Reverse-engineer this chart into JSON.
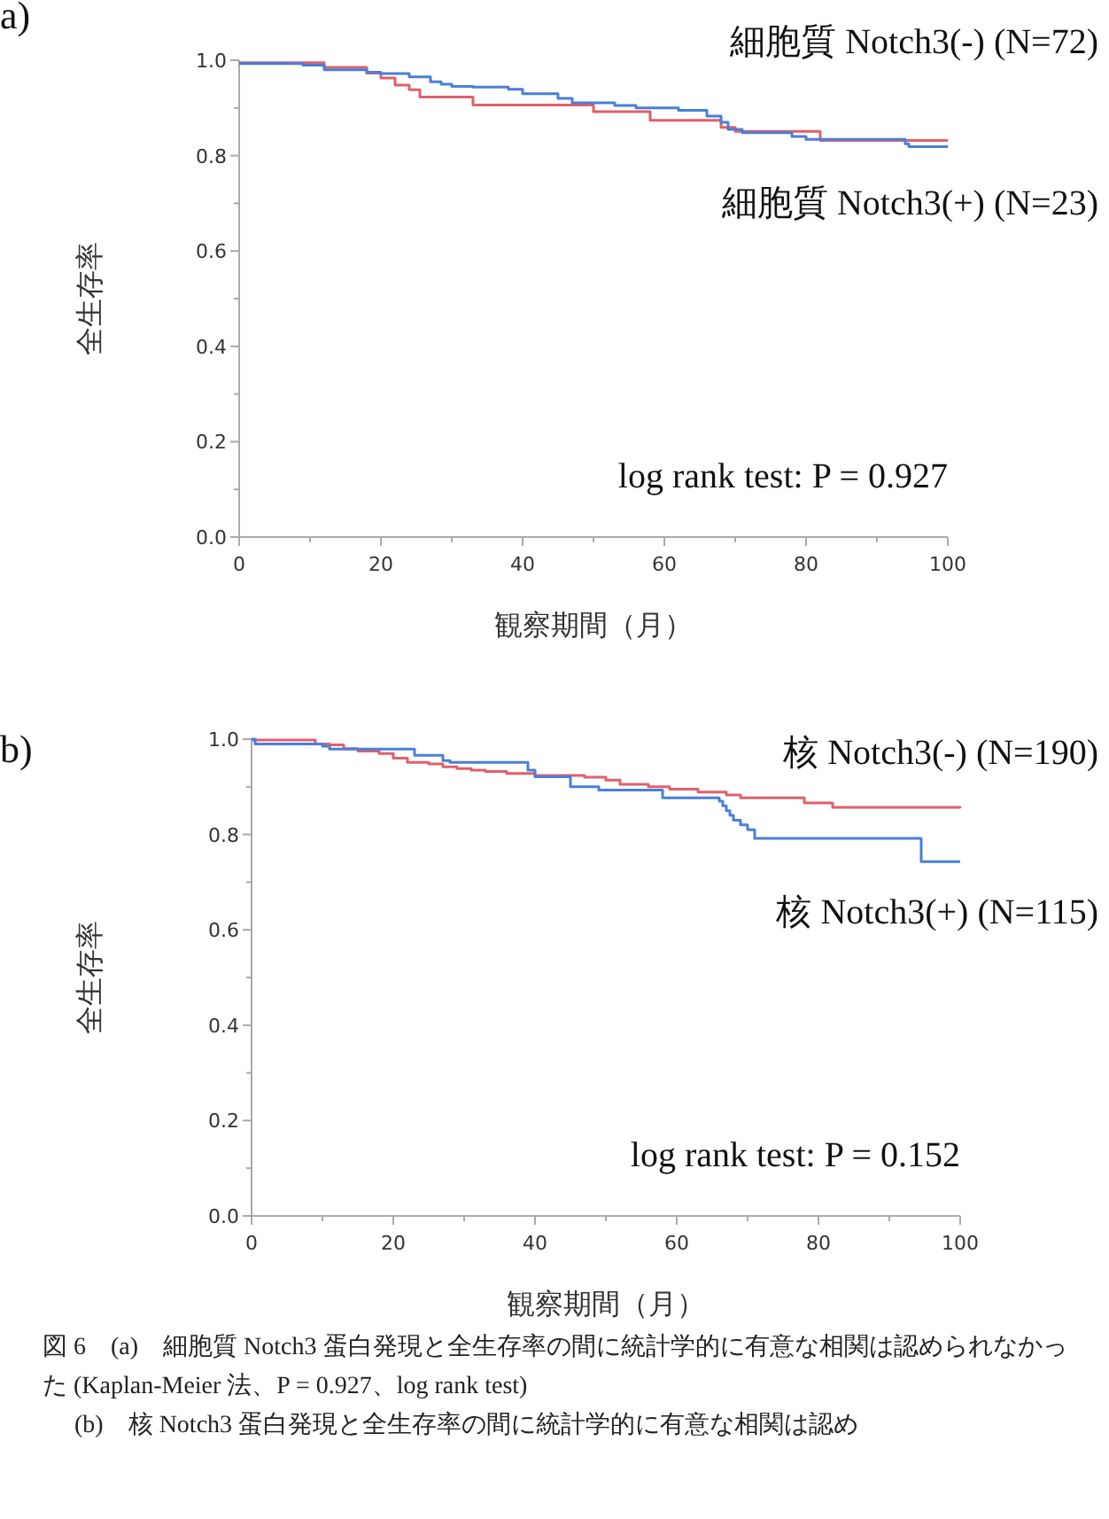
{
  "chart_data": [
    {
      "type": "step",
      "xlabel": "観察期間（月）",
      "ylabel": "全生存率",
      "xlim": [
        0,
        100
      ],
      "ylim": [
        0,
        1
      ],
      "xticks": [
        0,
        {
          "value": 10,
          "label": null
        },
        20,
        {
          "value": 30,
          "label": null
        },
        40,
        {
          "value": 50,
          "label": null
        },
        60,
        {
          "value": 70,
          "label": null
        },
        80,
        {
          "value": 90,
          "label": null
        },
        100
      ],
      "yticks": [
        {
          "value": 0,
          "label": "0.0"
        },
        {
          "value": 0.1,
          "label": null
        },
        {
          "value": 0.2,
          "label": "0.2"
        },
        {
          "value": 0.3,
          "label": null
        },
        {
          "value": 0.4,
          "label": "0.4"
        },
        {
          "value": 0.5,
          "label": null
        },
        {
          "value": 0.6,
          "label": "0.6"
        },
        {
          "value": 0.7,
          "label": null
        },
        {
          "value": 0.8,
          "label": "0.8"
        },
        {
          "value": 0.9,
          "label": null
        },
        {
          "value": 1,
          "label": "1.0"
        }
      ],
      "series": [
        {
          "name": "細胞質 Notch3(-) (N=72)",
          "color": "#e0606a",
          "x": [
            0,
            12,
            18,
            20,
            22,
            24,
            25.5,
            33,
            50,
            58,
            68,
            70,
            82,
            100
          ],
          "values": [
            0.995,
            0.985,
            0.973,
            0.963,
            0.948,
            0.938,
            0.923,
            0.906,
            0.892,
            0.874,
            0.859,
            0.851,
            0.832,
            0.832
          ]
        },
        {
          "name": "細胞質 Notch3(+) (N=23)",
          "color": "#4a7fd9",
          "x": [
            0,
            9,
            12,
            18,
            20,
            24,
            27,
            28.5,
            30,
            33,
            38,
            40,
            45,
            47,
            53,
            56,
            62,
            66,
            68,
            69,
            71,
            78,
            80,
            94,
            94.5,
            100
          ],
          "values": [
            0.993,
            0.99,
            0.98,
            0.975,
            0.972,
            0.965,
            0.955,
            0.95,
            0.945,
            0.944,
            0.939,
            0.93,
            0.92,
            0.911,
            0.905,
            0.9,
            0.895,
            0.883,
            0.87,
            0.855,
            0.848,
            0.84,
            0.834,
            0.825,
            0.819,
            0.819
          ]
        }
      ],
      "annotations": [
        "a)",
        "log rank test: P = 0.927"
      ]
    },
    {
      "type": "step",
      "xlabel": "観察期間（月）",
      "ylabel": "全生存率",
      "xlim": [
        0,
        100
      ],
      "ylim": [
        0,
        1
      ],
      "xticks": [
        0,
        {
          "value": 10,
          "label": null
        },
        20,
        {
          "value": 30,
          "label": null
        },
        40,
        {
          "value": 50,
          "label": null
        },
        60,
        {
          "value": 70,
          "label": null
        },
        80,
        {
          "value": 90,
          "label": null
        },
        100
      ],
      "yticks": [
        {
          "value": 0,
          "label": "0.0"
        },
        {
          "value": 0.1,
          "label": null
        },
        {
          "value": 0.2,
          "label": "0.2"
        },
        {
          "value": 0.3,
          "label": null
        },
        {
          "value": 0.4,
          "label": "0.4"
        },
        {
          "value": 0.5,
          "label": null
        },
        {
          "value": 0.6,
          "label": "0.6"
        },
        {
          "value": 0.7,
          "label": null
        },
        {
          "value": 0.8,
          "label": "0.8"
        },
        {
          "value": 0.9,
          "label": null
        },
        {
          "value": 1,
          "label": "1.0"
        }
      ],
      "series": [
        {
          "name": "核 Notch3(-) (N=190)",
          "color": "#e0606a",
          "x": [
            0,
            9,
            11,
            13,
            15,
            18,
            20,
            22,
            25,
            27,
            29,
            31,
            33,
            36,
            40,
            47,
            50,
            52,
            56,
            59,
            63,
            67,
            69,
            78,
            82,
            100
          ],
          "values": [
            0.998,
            0.99,
            0.988,
            0.98,
            0.975,
            0.97,
            0.96,
            0.951,
            0.948,
            0.942,
            0.938,
            0.935,
            0.932,
            0.928,
            0.924,
            0.92,
            0.914,
            0.905,
            0.9,
            0.895,
            0.889,
            0.883,
            0.877,
            0.866,
            0.857,
            0.855
          ]
        },
        {
          "name": "核 Notch3(+) (N=115)",
          "color": "#4a7fd9",
          "x": [
            0,
            0.5,
            10,
            11,
            23,
            27,
            28,
            39,
            40,
            45,
            49,
            58,
            66,
            66.5,
            67,
            67.5,
            68,
            69,
            70,
            71,
            94.5,
            100
          ],
          "values": [
            1,
            0.99,
            0.985,
            0.979,
            0.966,
            0.955,
            0.951,
            0.935,
            0.921,
            0.9,
            0.893,
            0.877,
            0.87,
            0.86,
            0.85,
            0.84,
            0.83,
            0.82,
            0.81,
            0.792,
            0.743,
            0.743
          ]
        }
      ],
      "annotations": [
        "b)",
        "log rank test: P = 0.152",
        "図 6　(a)　細胞質 Notch3 蛋白発現と全生存率の間に統計学的に有意な相関は認められなかった (Kaplan-Meier 法、P = 0.927、log rank test)",
        "(b)　核 Notch3 蛋白発現と全生存率の間に統計学的に有意な相関は認め"
      ]
    }
  ]
}
